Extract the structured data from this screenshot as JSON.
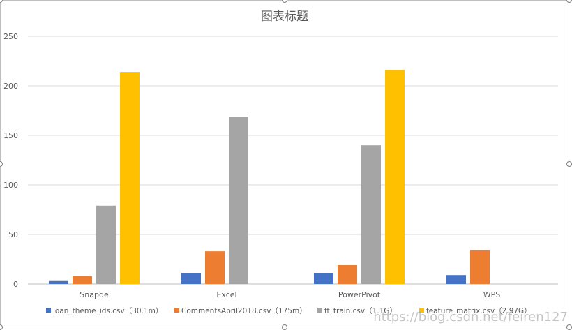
{
  "chart_data": {
    "type": "bar",
    "title": "图表标题",
    "categories": [
      "Snapde",
      "Excel",
      "PowerPivot",
      "WPS"
    ],
    "series": [
      {
        "name": "loan_theme_ids.csv（30.1m）",
        "values": [
          3,
          11,
          11,
          9
        ],
        "color": "#4472c4"
      },
      {
        "name": "CommentsApril2018.csv（175m）",
        "values": [
          8,
          33,
          19,
          34
        ],
        "color": "#ed7d31"
      },
      {
        "name": "ft_train.csv（1.1G）",
        "values": [
          79,
          169,
          140,
          null
        ],
        "color": "#a5a5a5"
      },
      {
        "name": "feature_matrix.csv（2.97G）",
        "values": [
          214,
          null,
          216,
          null
        ],
        "color": "#ffc000"
      }
    ],
    "ylim": [
      0,
      250
    ],
    "yticks": [
      "0",
      "50",
      "100",
      "150",
      "200",
      "250"
    ],
    "grid": true,
    "legend": "bottom",
    "xlabel": "",
    "ylabel": ""
  },
  "watermark": "https://blog.csdn.net/feiren127"
}
